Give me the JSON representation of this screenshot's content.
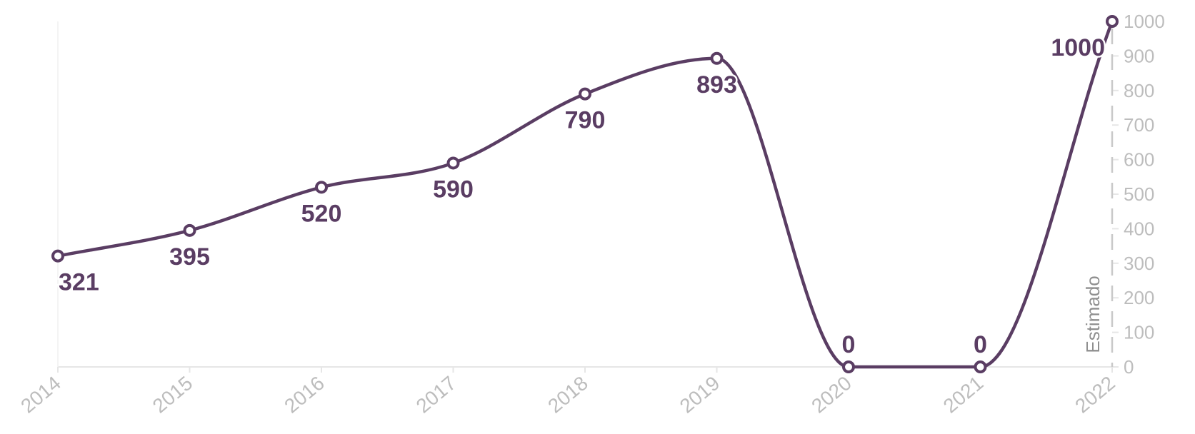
{
  "chart_data": {
    "type": "line",
    "title": "",
    "xlabel": "",
    "ylabel": "",
    "categories": [
      "2014",
      "2015",
      "2016",
      "2017",
      "2018",
      "2019",
      "2020",
      "2021",
      "2022"
    ],
    "series": [
      {
        "values": [
          321,
          395,
          520,
          590,
          790,
          893,
          0,
          0,
          1000
        ]
      }
    ],
    "data_labels": [
      "321",
      "395",
      "520",
      "590",
      "790",
      "893",
      "0",
      "0",
      "1000"
    ],
    "y_ticks": [
      "0",
      "100",
      "200",
      "300",
      "400",
      "500",
      "600",
      "700",
      "800",
      "900",
      "1000"
    ],
    "ylim": [
      0,
      1000
    ],
    "y_axis_side": "right",
    "grid": false,
    "legend": "none",
    "annotation": {
      "text": "Estimado",
      "at": "2022"
    },
    "colors": {
      "line": "#5a3d63",
      "axis_text": "#bdbdbd",
      "axis_line": "#e6e6e6",
      "annotation_text": "#8f8f8f",
      "annotation_line": "#c9c9c9"
    }
  }
}
